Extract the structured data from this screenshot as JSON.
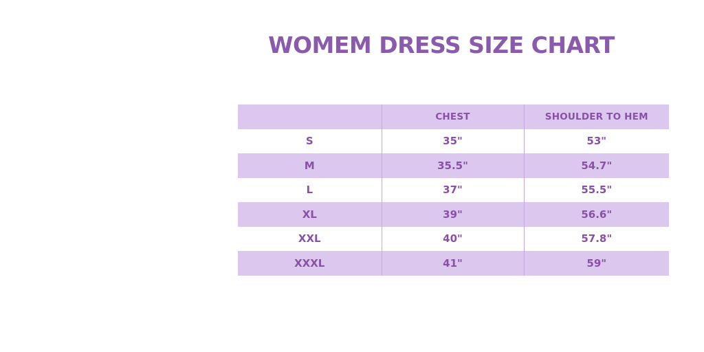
{
  "title": {
    "text": "WOMEM DRESS SIZE CHART"
  },
  "colors": {
    "title_purple": "#8a5bac",
    "cell_text_purple": "#8951a6",
    "row_lavender": "#dcc7ee",
    "row_white": "#ffffff",
    "column_divider": "#c8a6de",
    "page_background": "#ffffff"
  },
  "chart_data": {
    "type": "table",
    "title": "WOMEM DRESS SIZE CHART",
    "columns": [
      "",
      "CHEST",
      "SHOULDER TO HEM"
    ],
    "rows": [
      {
        "size": "S",
        "chest": "35\"",
        "shoulder_to_hem": "53\""
      },
      {
        "size": "M",
        "chest": "35.5\"",
        "shoulder_to_hem": "54.7\""
      },
      {
        "size": "L",
        "chest": "37\"",
        "shoulder_to_hem": "55.5\""
      },
      {
        "size": "XL",
        "chest": "39\"",
        "shoulder_to_hem": "56.6\""
      },
      {
        "size": "XXL",
        "chest": "40\"",
        "shoulder_to_hem": "57.8\""
      },
      {
        "size": "XXXL",
        "chest": "41\"",
        "shoulder_to_hem": "59\""
      }
    ],
    "layout": {
      "header_background": "lavender",
      "row_striping": "alternating white/lavender starting white after header",
      "column_alignment": "center",
      "grid": "vertical dividers only"
    }
  }
}
